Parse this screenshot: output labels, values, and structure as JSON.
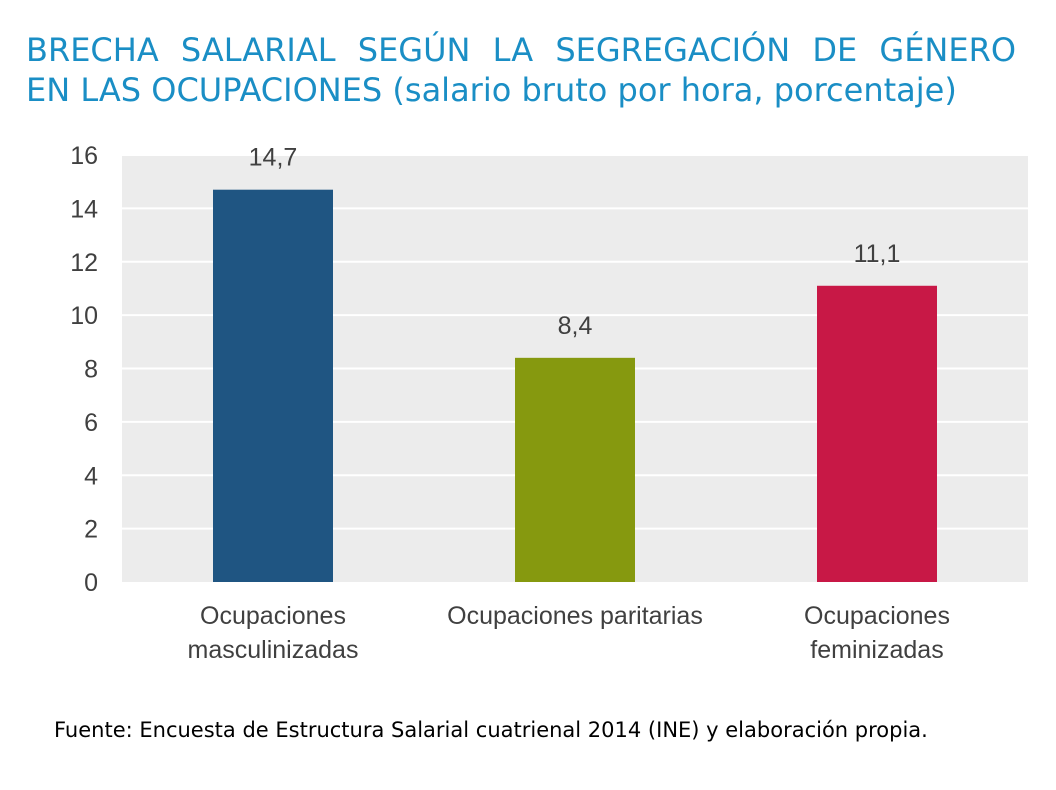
{
  "title_line1": "BRECHA SALARIAL SEGÚN LA SEGREGACIÓN DE GÉNERO",
  "title_line2": "EN LAS OCUPACIONES (salario bruto por hora, porcentaje)",
  "source": "Fuente: Encuesta de Estructura Salarial cuatrienal 2014 (INE) y elaboración propia.",
  "colors": {
    "title": "#1a8ec5",
    "plot_bg": "#ececec",
    "grid": "#ffffff",
    "text": "#404040"
  },
  "chart_data": {
    "type": "bar",
    "title": "BRECHA SALARIAL SEGÚN LA SEGREGACIÓN DE GÉNERO EN LAS OCUPACIONES (salario bruto por hora, porcentaje)",
    "categories": [
      [
        "Ocupaciones",
        "masculinizadas"
      ],
      [
        "Ocupaciones paritarias"
      ],
      [
        "Ocupaciones",
        "feminizadas"
      ]
    ],
    "values": [
      14.7,
      8.4,
      11.1
    ],
    "data_labels": [
      "14,7",
      "8,4",
      "11,1"
    ],
    "bar_colors": [
      "#1f5582",
      "#86990f",
      "#c81846"
    ],
    "ylim": [
      0,
      16
    ],
    "yticks": [
      0,
      2,
      4,
      6,
      8,
      10,
      12,
      14,
      16
    ],
    "grid": true,
    "legend": "none"
  }
}
